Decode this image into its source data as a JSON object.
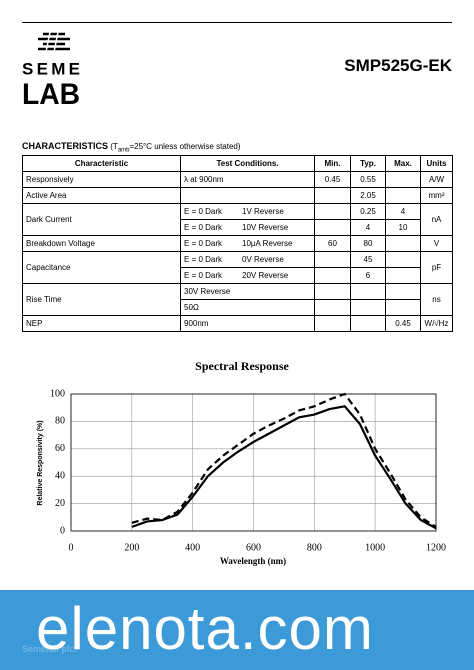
{
  "header": {
    "logo_top": "SEME",
    "logo_bottom": "LAB",
    "part_number": "SMP525G-EK"
  },
  "characteristics": {
    "title": "CHARACTERISTICS",
    "note_prefix": "(T",
    "note_sub": "amb",
    "note_suffix": "=25°C unless otherwise stated)"
  },
  "table": {
    "columns": [
      "Characteristic",
      "Test Conditions.",
      "Min.",
      "Typ.",
      "Max.",
      "Units"
    ],
    "rows": [
      {
        "name": "Responsively",
        "units": "A/W",
        "lines": [
          {
            "conditions": [
              "λ at 900nm"
            ],
            "min": 0.45,
            "typ": 0.55
          }
        ]
      },
      {
        "name": "Active Area",
        "units": "mm²",
        "lines": [
          {
            "typ": 2.05
          }
        ]
      },
      {
        "name": "Dark Current",
        "units": "nA",
        "lines": [
          {
            "conditions": [
              "E = 0 Dark",
              "1V Reverse"
            ],
            "typ": 0.25,
            "max": 4
          },
          {
            "conditions": [
              "E = 0 Dark",
              "10V Reverse"
            ],
            "typ": 4,
            "max": 10
          }
        ]
      },
      {
        "name": "Breakdown Voltage",
        "units": "V",
        "lines": [
          {
            "conditions": [
              "E = 0 Dark",
              "10μA Reverse"
            ],
            "min": 60,
            "typ": 80
          }
        ]
      },
      {
        "name": "Capacitance",
        "units": "pF",
        "lines": [
          {
            "conditions": [
              "E = 0 Dark",
              "0V Reverse"
            ],
            "typ": 45
          },
          {
            "conditions": [
              "E = 0 Dark",
              "20V Reverse"
            ],
            "typ": 6
          }
        ]
      },
      {
        "name": "Rise Time",
        "units": "ns",
        "lines": [
          {
            "conditions": [
              "30V Reverse"
            ]
          },
          {
            "conditions": [
              "50Ω"
            ]
          }
        ]
      },
      {
        "name": "NEP",
        "units": "W/√Hz",
        "lines": [
          {
            "conditions": [
              "900nm"
            ],
            "max": 0.45
          }
        ]
      }
    ]
  },
  "chart_data": {
    "type": "line",
    "title": "Spectral Response",
    "x_label": "Wavelength (nm)",
    "y_label": "Relative Responsivity (%)",
    "x": [
      200,
      250,
      300,
      350,
      400,
      450,
      500,
      550,
      600,
      650,
      700,
      750,
      800,
      850,
      900,
      950,
      1000,
      1050,
      1100,
      1150,
      1200
    ],
    "series": [
      {
        "color": "#000000",
        "dashed": false,
        "values": [
          3,
          7,
          8,
          12,
          25,
          40,
          50,
          58,
          65,
          71,
          77,
          83,
          85,
          89,
          91,
          78,
          55,
          38,
          20,
          8,
          2
        ]
      },
      {
        "color": "#000000",
        "dashed": true,
        "values": [
          6,
          9,
          8,
          14,
          28,
          45,
          55,
          63,
          71,
          77,
          82,
          88,
          91,
          96,
          100,
          85,
          60,
          42,
          23,
          10,
          3
        ]
      }
    ],
    "xlim": [
      0,
      1200
    ],
    "xticks": [
      0,
      200,
      400,
      600,
      800,
      1000,
      1200
    ],
    "ylim": [
      0,
      100
    ],
    "yticks": [
      0,
      20,
      40,
      60,
      80,
      100
    ],
    "grid": true
  },
  "footer": {
    "watermark": "elenota.com",
    "company": "Semelab plc."
  }
}
